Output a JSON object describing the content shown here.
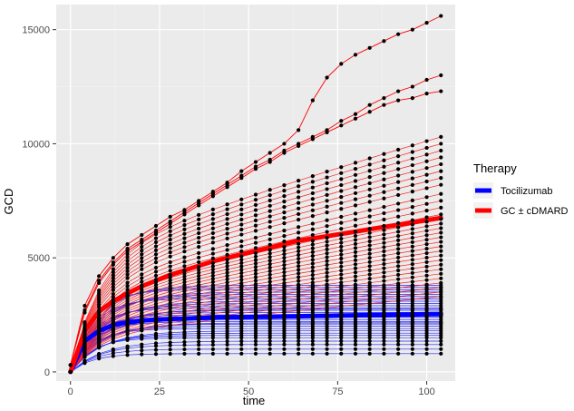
{
  "chart_data": {
    "type": "line",
    "xlabel": "time",
    "ylabel": "GCD",
    "xlim": [
      -4,
      108
    ],
    "ylim": [
      -400,
      16100
    ],
    "x_ticks": [
      0,
      25,
      50,
      75,
      100
    ],
    "y_ticks": [
      0,
      5000,
      10000,
      15000
    ],
    "x_tick_labels": [
      "0",
      "25",
      "50",
      "75",
      "100"
    ],
    "y_tick_labels": [
      "0",
      "5000",
      "10000",
      "15000"
    ],
    "grid": true,
    "panel_background": "#ebebeb",
    "times": [
      0,
      4,
      8,
      12,
      16,
      20,
      24,
      28,
      32,
      36,
      40,
      44,
      48,
      52,
      56,
      60,
      64,
      68,
      72,
      76,
      80,
      84,
      88,
      92,
      96,
      100,
      104
    ],
    "legend": {
      "title": "Therapy",
      "position": "right",
      "entries": [
        {
          "label": "Tocilizumab",
          "color": "#0000ff"
        },
        {
          "label": "GC ± cDMARD",
          "color": "#ff0000"
        }
      ]
    },
    "tocilizumab_plateaus": [
      800,
      1000,
      1200,
      1350,
      1500,
      1600,
      1700,
      1800,
      1900,
      2000,
      2100,
      2150,
      2200,
      2300,
      2400,
      2450,
      2500,
      2600,
      2700,
      2750,
      2800,
      2900,
      3000,
      3100,
      3200,
      3300,
      3400,
      3500,
      3600,
      3700,
      3800
    ],
    "gc_endpoints": [
      3300,
      3500,
      3700,
      3900,
      4100,
      4300,
      4500,
      4700,
      4900,
      5100,
      5300,
      5500,
      5700,
      5900,
      6100,
      6300,
      6500,
      6700,
      6900,
      7200,
      7500,
      7800,
      8200,
      8500,
      8800,
      9100,
      9400,
      9700,
      10000,
      10300
    ],
    "series": [
      {
        "name": "Tocilizumab",
        "color": "#0000ff",
        "mean": [
          0,
          1350,
          1800,
          2050,
          2180,
          2250,
          2290,
          2320,
          2340,
          2360,
          2380,
          2390,
          2400,
          2410,
          2420,
          2430,
          2440,
          2450,
          2460,
          2470,
          2480,
          2490,
          2500,
          2510,
          2520,
          2530,
          2540
        ]
      },
      {
        "name": "GC ± cDMARD",
        "color": "#ff0000",
        "mean": [
          0,
          1800,
          2650,
          3100,
          3450,
          3750,
          4000,
          4250,
          4450,
          4650,
          4850,
          5000,
          5150,
          5300,
          5450,
          5600,
          5750,
          5850,
          5950,
          6050,
          6150,
          6250,
          6350,
          6450,
          6550,
          6650,
          6750
        ]
      }
    ],
    "highlighted_gc_curves": [
      {
        "values": [
          300,
          2900,
          4200,
          5000,
          5600,
          6000,
          6400,
          6800,
          7100,
          7500,
          7900,
          8300,
          8800,
          9200,
          9600,
          10000,
          10600,
          11900,
          12900,
          13500,
          13900,
          14200,
          14500,
          14800,
          15000,
          15300,
          15600
        ]
      },
      {
        "values": [
          300,
          2700,
          4000,
          4800,
          5400,
          5800,
          6200,
          6600,
          7000,
          7400,
          7800,
          8200,
          8600,
          9000,
          9300,
          9700,
          10000,
          10300,
          10600,
          11000,
          11300,
          11700,
          12000,
          12300,
          12500,
          12800,
          13000
        ]
      },
      {
        "values": [
          300,
          2600,
          3900,
          4700,
          5300,
          5700,
          6100,
          6500,
          6900,
          7300,
          7700,
          8100,
          8500,
          8900,
          9200,
          9600,
          9900,
          10200,
          10500,
          10800,
          11100,
          11400,
          11700,
          11900,
          12000,
          12200,
          12300
        ]
      }
    ]
  }
}
